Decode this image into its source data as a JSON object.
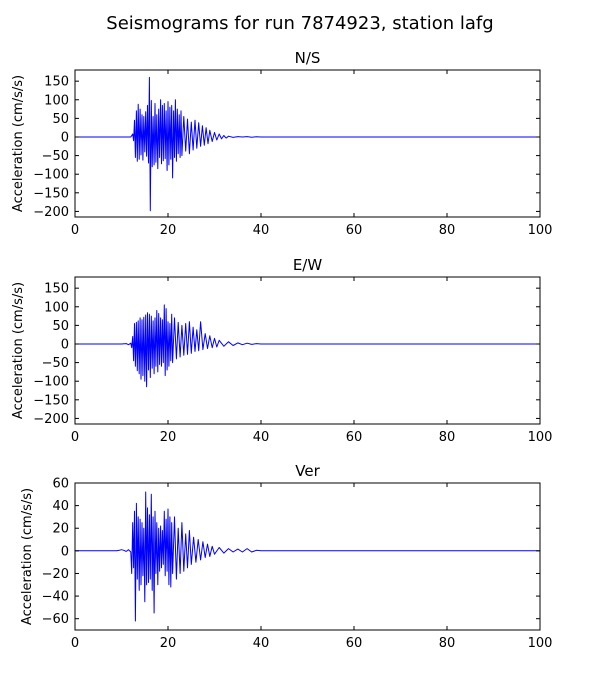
{
  "chart_data": {
    "title": "Seismograms for run 7874923, station lafg",
    "type": "line",
    "panels": [
      {
        "title": "N/S",
        "ylabel": "Acceleration (cm/s/s)",
        "xlim": [
          0,
          100
        ],
        "ylim": [
          -215,
          180
        ],
        "xticks": [
          0,
          20,
          40,
          60,
          80,
          100
        ],
        "yticks": [
          -200,
          -150,
          -100,
          -50,
          0,
          50,
          100,
          150
        ],
        "color": "#0000ff",
        "x": [
          0,
          12,
          12.4,
          12.6,
          12.8,
          13.0,
          13.2,
          13.4,
          13.6,
          13.8,
          14.0,
          14.2,
          14.4,
          14.6,
          14.8,
          15.0,
          15.2,
          15.4,
          15.6,
          15.8,
          16.0,
          16.2,
          16.4,
          16.6,
          16.8,
          17.0,
          17.2,
          17.4,
          17.6,
          17.8,
          18.0,
          18.2,
          18.4,
          18.6,
          18.8,
          19.0,
          19.2,
          19.4,
          19.6,
          19.8,
          20.0,
          20.2,
          20.4,
          20.6,
          20.8,
          21.0,
          21.2,
          21.4,
          21.6,
          21.8,
          22.0,
          22.2,
          22.4,
          22.6,
          22.8,
          23.0,
          23.4,
          23.8,
          24.2,
          24.6,
          25.0,
          25.4,
          25.8,
          26.2,
          26.6,
          27.0,
          27.4,
          27.8,
          28.2,
          28.6,
          29.0,
          29.5,
          30,
          30.5,
          31,
          31.5,
          32,
          32.5,
          33,
          34,
          35,
          36,
          37,
          38,
          39,
          40,
          100
        ],
        "y": [
          0,
          0,
          8,
          -10,
          45,
          -55,
          70,
          -65,
          88,
          -60,
          75,
          -48,
          60,
          -62,
          55,
          -40,
          68,
          -52,
          85,
          -70,
          160,
          -198,
          98,
          -80,
          55,
          -75,
          90,
          -68,
          60,
          -85,
          75,
          -55,
          100,
          -72,
          85,
          -64,
          90,
          -58,
          70,
          -90,
          95,
          -75,
          80,
          -60,
          85,
          -110,
          70,
          -55,
          100,
          -65,
          75,
          -45,
          60,
          -55,
          70,
          -50,
          55,
          -38,
          48,
          -45,
          40,
          -35,
          45,
          -30,
          38,
          -25,
          30,
          -22,
          25,
          -18,
          18,
          -12,
          12,
          -8,
          8,
          -5,
          4,
          -3,
          2,
          -1,
          1,
          0,
          1,
          -0.5,
          0.5,
          0,
          0
        ]
      },
      {
        "title": "E/W",
        "ylabel": "Acceleration (cm/s/s)",
        "xlim": [
          0,
          100
        ],
        "ylim": [
          -215,
          180
        ],
        "xticks": [
          0,
          20,
          40,
          60,
          80,
          100
        ],
        "yticks": [
          -200,
          -150,
          -100,
          -50,
          0,
          50,
          100,
          150
        ],
        "color": "#0000ff",
        "x": [
          0,
          10,
          11,
          11.5,
          12,
          12.2,
          12.4,
          12.6,
          12.8,
          13.0,
          13.2,
          13.4,
          13.6,
          13.8,
          14.0,
          14.2,
          14.4,
          14.6,
          14.8,
          15.0,
          15.2,
          15.4,
          15.6,
          15.8,
          16.0,
          16.2,
          16.4,
          16.6,
          16.8,
          17.0,
          17.2,
          17.4,
          17.6,
          17.8,
          18.0,
          18.2,
          18.4,
          18.6,
          18.8,
          19.0,
          19.2,
          19.4,
          19.6,
          19.8,
          20.0,
          20.2,
          20.4,
          20.6,
          20.8,
          21.0,
          21.4,
          21.8,
          22.2,
          22.6,
          23.0,
          23.4,
          23.8,
          24.2,
          24.6,
          25.0,
          25.4,
          25.8,
          26.2,
          26.6,
          27.0,
          27.5,
          28,
          28.5,
          29,
          29.5,
          30,
          30.5,
          31,
          32,
          33,
          34,
          35,
          36,
          37,
          38,
          39,
          40,
          100
        ],
        "y": [
          0,
          0,
          1,
          -2,
          2,
          -10,
          20,
          -45,
          55,
          -60,
          58,
          -72,
          62,
          -80,
          70,
          -95,
          65,
          -85,
          72,
          -100,
          78,
          -115,
          84,
          -70,
          80,
          -90,
          75,
          -65,
          62,
          -80,
          70,
          -60,
          90,
          -75,
          82,
          -55,
          70,
          -60,
          65,
          -50,
          105,
          -85,
          95,
          -70,
          60,
          -60,
          55,
          -45,
          80,
          -50,
          70,
          -40,
          58,
          -35,
          50,
          -30,
          55,
          -28,
          60,
          -25,
          45,
          -20,
          38,
          -18,
          60,
          -15,
          28,
          -12,
          22,
          -10,
          15,
          -8,
          10,
          -6,
          6,
          -4,
          3,
          -2,
          2,
          -1,
          1,
          0,
          0
        ]
      },
      {
        "title": "Ver",
        "ylabel": "Acceleration (cm/s/s)",
        "xlim": [
          0,
          100
        ],
        "ylim": [
          -70,
          60
        ],
        "xticks": [
          0,
          20,
          40,
          60,
          80,
          100
        ],
        "yticks": [
          -60,
          -40,
          -20,
          0,
          20,
          40,
          60
        ],
        "color": "#0000ff",
        "x": [
          0,
          9,
          9.5,
          10,
          10.5,
          11,
          11.5,
          12,
          12.2,
          12.4,
          12.6,
          12.8,
          13.0,
          13.2,
          13.4,
          13.6,
          13.8,
          14.0,
          14.2,
          14.4,
          14.6,
          14.8,
          15.0,
          15.2,
          15.4,
          15.6,
          15.8,
          16.0,
          16.2,
          16.4,
          16.6,
          16.8,
          17.0,
          17.2,
          17.4,
          17.6,
          17.8,
          18.0,
          18.2,
          18.4,
          18.6,
          18.8,
          19.0,
          19.2,
          19.4,
          19.6,
          19.8,
          20.0,
          20.2,
          20.4,
          20.6,
          20.8,
          21.0,
          21.4,
          21.8,
          22.2,
          22.6,
          23.0,
          23.4,
          23.8,
          24.2,
          24.6,
          25.0,
          25.5,
          26,
          26.5,
          27,
          27.5,
          28,
          28.5,
          29,
          29.5,
          30,
          31,
          32,
          33,
          34,
          35,
          36,
          37,
          38,
          39,
          40,
          41,
          42,
          100
        ],
        "y": [
          0,
          0,
          0.5,
          1,
          0.5,
          -0.5,
          1,
          -1,
          -20,
          25,
          -15,
          35,
          -62,
          42,
          -25,
          30,
          -35,
          28,
          -30,
          25,
          -22,
          20,
          -45,
          52,
          -30,
          38,
          -28,
          32,
          -25,
          50,
          -35,
          30,
          -55,
          35,
          -20,
          25,
          -30,
          20,
          -18,
          22,
          -15,
          18,
          -12,
          35,
          -22,
          28,
          -18,
          37,
          -30,
          30,
          -32,
          25,
          -20,
          30,
          -25,
          20,
          -20,
          25,
          -18,
          15,
          -15,
          18,
          -12,
          12,
          -10,
          10,
          -8,
          8,
          -6,
          6,
          -5,
          4,
          -3,
          3,
          -2,
          2,
          -1,
          1.5,
          -1,
          2,
          -1,
          0.5,
          0,
          0,
          0,
          0
        ]
      }
    ]
  }
}
